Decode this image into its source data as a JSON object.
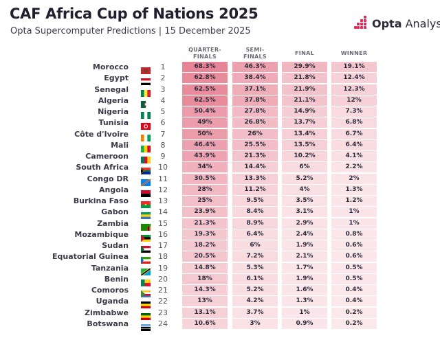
{
  "title": "CAF Africa Cup of Nations 2025",
  "subtitle": "Opta Supercomputer Predictions | 15 December 2025",
  "brand": {
    "name_bold": "Opta",
    "name_rest": " Analyst",
    "accent_color": "#e4285a"
  },
  "chart_data": {
    "type": "table",
    "columns": [
      "QUARTER-\nFINALS",
      "SEMI-\nFINALS",
      "FINAL",
      "WINNER"
    ],
    "rows": [
      {
        "rank": "1",
        "team": "Morocco",
        "values": [
          "68.3%",
          "46.3%",
          "29.9%",
          "19.1%"
        ]
      },
      {
        "rank": "2",
        "team": "Egypt",
        "values": [
          "62.8%",
          "38.4%",
          "21.8%",
          "12.4%"
        ]
      },
      {
        "rank": "3",
        "team": "Senegal",
        "values": [
          "62.5%",
          "37.1%",
          "21.9%",
          "12.3%"
        ]
      },
      {
        "rank": "4",
        "team": "Algeria",
        "values": [
          "62.5%",
          "37.8%",
          "21.1%",
          "12%"
        ]
      },
      {
        "rank": "5",
        "team": "Nigeria",
        "values": [
          "50.4%",
          "27.8%",
          "14.9%",
          "7.3%"
        ]
      },
      {
        "rank": "6",
        "team": "Tunisia",
        "values": [
          "49%",
          "26.8%",
          "13.7%",
          "6.8%"
        ]
      },
      {
        "rank": "7",
        "team": "Côte d'Ivoire",
        "values": [
          "50%",
          "26%",
          "13.4%",
          "6.7%"
        ]
      },
      {
        "rank": "8",
        "team": "Mali",
        "values": [
          "46.4%",
          "25.5%",
          "13.5%",
          "6.4%"
        ]
      },
      {
        "rank": "9",
        "team": "Cameroon",
        "values": [
          "43.9%",
          "21.3%",
          "10.2%",
          "4.1%"
        ]
      },
      {
        "rank": "10",
        "team": "South Africa",
        "values": [
          "34%",
          "14.4%",
          "6%",
          "2.2%"
        ]
      },
      {
        "rank": "11",
        "team": "Congo DR",
        "values": [
          "30.5%",
          "13.3%",
          "5.2%",
          "2%"
        ]
      },
      {
        "rank": "12",
        "team": "Angola",
        "values": [
          "28%",
          "11.2%",
          "4%",
          "1.3%"
        ]
      },
      {
        "rank": "13",
        "team": "Burkina Faso",
        "values": [
          "25%",
          "9.5%",
          "3.5%",
          "1.2%"
        ]
      },
      {
        "rank": "14",
        "team": "Gabon",
        "values": [
          "23.9%",
          "8.4%",
          "3.1%",
          "1%"
        ]
      },
      {
        "rank": "15",
        "team": "Zambia",
        "values": [
          "21.3%",
          "8.9%",
          "2.9%",
          "1%"
        ]
      },
      {
        "rank": "16",
        "team": "Mozambique",
        "values": [
          "19.3%",
          "6.4%",
          "2.4%",
          "0.8%"
        ]
      },
      {
        "rank": "17",
        "team": "Sudan",
        "values": [
          "18.2%",
          "6%",
          "1.9%",
          "0.6%"
        ]
      },
      {
        "rank": "18",
        "team": "Equatorial Guinea",
        "values": [
          "20.5%",
          "7.2%",
          "2.1%",
          "0.6%"
        ]
      },
      {
        "rank": "19",
        "team": "Tanzania",
        "values": [
          "14.8%",
          "5.3%",
          "1.7%",
          "0.5%"
        ]
      },
      {
        "rank": "20",
        "team": "Benin",
        "values": [
          "18%",
          "6.1%",
          "1.9%",
          "0.5%"
        ]
      },
      {
        "rank": "21",
        "team": "Comoros",
        "values": [
          "14.3%",
          "5.2%",
          "1.6%",
          "0.4%"
        ]
      },
      {
        "rank": "22",
        "team": "Uganda",
        "values": [
          "13%",
          "4.2%",
          "1.3%",
          "0.4%"
        ]
      },
      {
        "rank": "23",
        "team": "Zimbabwe",
        "values": [
          "13.1%",
          "3.7%",
          "1%",
          "0.2%"
        ]
      },
      {
        "rank": "24",
        "team": "Botswana",
        "values": [
          "10.6%",
          "3%",
          "0.9%",
          "0.2%"
        ]
      }
    ]
  },
  "flags": [
    {
      "team": "Morocco",
      "icon": "morocco-flag",
      "colors": [
        "#c1272d"
      ]
    },
    {
      "team": "Egypt",
      "icon": "egypt-flag",
      "colors": [
        "#ce1126",
        "#ffffff",
        "#000000"
      ]
    },
    {
      "team": "Senegal",
      "icon": "senegal-flag",
      "colors": [
        "#00853f",
        "#fdef42",
        "#e31b23"
      ]
    },
    {
      "team": "Algeria",
      "icon": "algeria-flag",
      "colors": [
        "#006633",
        "#ffffff"
      ]
    },
    {
      "team": "Nigeria",
      "icon": "nigeria-flag",
      "colors": [
        "#008751",
        "#ffffff",
        "#008751"
      ]
    },
    {
      "team": "Tunisia",
      "icon": "tunisia-flag",
      "colors": [
        "#e70013"
      ]
    },
    {
      "team": "Côte d'Ivoire",
      "icon": "cote-divoire-flag",
      "colors": [
        "#f77f00",
        "#ffffff",
        "#009e60"
      ]
    },
    {
      "team": "Mali",
      "icon": "mali-flag",
      "colors": [
        "#14b53a",
        "#fcd116",
        "#ce1126"
      ]
    },
    {
      "team": "Cameroon",
      "icon": "cameroon-flag",
      "colors": [
        "#007a5e",
        "#ce1126",
        "#fcd116"
      ]
    },
    {
      "team": "South Africa",
      "icon": "south-africa-flag",
      "colors": [
        "#007749",
        "#de3831",
        "#002395"
      ]
    },
    {
      "team": "Congo DR",
      "icon": "congo-dr-flag",
      "colors": [
        "#007fff",
        "#f7d618",
        "#ce1021"
      ]
    },
    {
      "team": "Angola",
      "icon": "angola-flag",
      "colors": [
        "#cc092f",
        "#000000"
      ]
    },
    {
      "team": "Burkina Faso",
      "icon": "burkina-faso-flag",
      "colors": [
        "#ef2b2d",
        "#009e49"
      ]
    },
    {
      "team": "Gabon",
      "icon": "gabon-flag",
      "colors": [
        "#009e60",
        "#fcd116",
        "#3a75c4"
      ]
    },
    {
      "team": "Zambia",
      "icon": "zambia-flag",
      "colors": [
        "#198a00",
        "#de2010",
        "#000000",
        "#ef7d00"
      ]
    },
    {
      "team": "Mozambique",
      "icon": "mozambique-flag",
      "colors": [
        "#009739",
        "#000000",
        "#fcd116"
      ]
    },
    {
      "team": "Sudan",
      "icon": "sudan-flag",
      "colors": [
        "#d21034",
        "#ffffff",
        "#000000"
      ]
    },
    {
      "team": "Equatorial Guinea",
      "icon": "equatorial-guinea-flag",
      "colors": [
        "#3e9a00",
        "#ffffff",
        "#e32118"
      ]
    },
    {
      "team": "Tanzania",
      "icon": "tanzania-flag",
      "colors": [
        "#1eb53a",
        "#00a3dd",
        "#000000"
      ]
    },
    {
      "team": "Benin",
      "icon": "benin-flag",
      "colors": [
        "#008751",
        "#fcd116",
        "#e8112d"
      ]
    },
    {
      "team": "Comoros",
      "icon": "comoros-flag",
      "colors": [
        "#ffc61e",
        "#ffffff",
        "#ce1126",
        "#3a75c4"
      ]
    },
    {
      "team": "Uganda",
      "icon": "uganda-flag",
      "colors": [
        "#000000",
        "#fcdc04",
        "#d90000"
      ]
    },
    {
      "team": "Zimbabwe",
      "icon": "zimbabwe-flag",
      "colors": [
        "#006400",
        "#ffd200",
        "#d40000"
      ]
    },
    {
      "team": "Botswana",
      "icon": "botswana-flag",
      "colors": [
        "#75aadb",
        "#000000"
      ]
    }
  ],
  "colors": {
    "heat_base": "#fbe9ec",
    "heat_max": "#e57c8e",
    "header_text": "#6a6a78"
  }
}
